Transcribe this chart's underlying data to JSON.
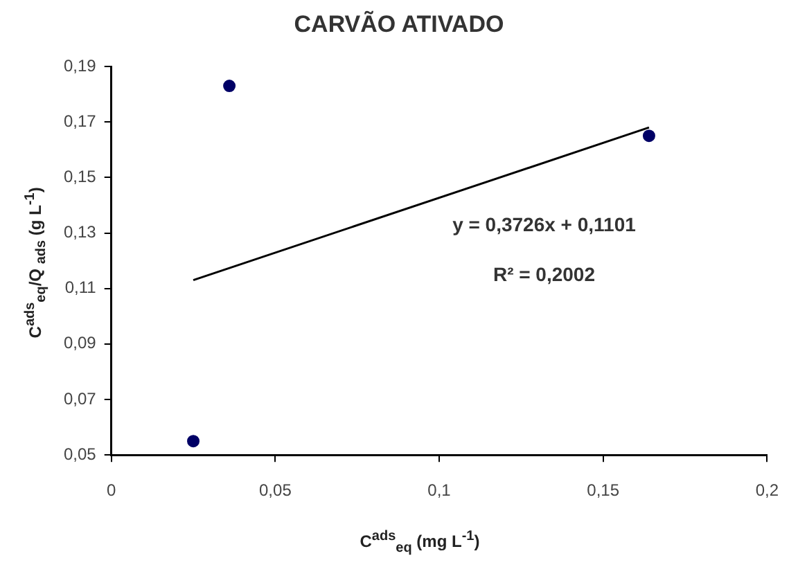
{
  "chart_data": {
    "type": "scatter",
    "title": "CARVÃO ATIVADO",
    "xlabel": "C$^{ads}$$_{eq}$ (mg L$^{-1}$)",
    "ylabel": "C$^{ads}$$_{eq}$/Q $_{ads}$ (g L$^{-1}$)",
    "x": [
      0.025,
      0.036,
      0.164
    ],
    "series": [
      {
        "color": "#000066",
        "values": [
          0.055,
          0.183,
          0.165
        ],
        "marker": "circle"
      },
      {
        "type": "line",
        "color": "#000000",
        "x": [
          0.025,
          0.164
        ],
        "values": [
          0.113,
          0.168
        ],
        "marker": "none"
      }
    ],
    "annotations": [
      "y = 0,3726x + 0,1101",
      "R² = 0,2002"
    ],
    "xlim": [
      0,
      0.2
    ],
    "xticks": [
      0,
      {
        "value": 0.05,
        "label": "0,05"
      },
      {
        "value": 0.1,
        "label": "0,1"
      },
      {
        "value": 0.15,
        "label": "0,15"
      },
      {
        "value": 0.2,
        "label": "0,2"
      }
    ],
    "ylim": [
      0.05,
      0.19
    ],
    "yticks": [
      {
        "value": 0.05,
        "label": "0,05"
      },
      {
        "value": 0.07,
        "label": "0,07"
      },
      {
        "value": 0.09,
        "label": "0,09"
      },
      {
        "value": 0.11,
        "label": "0,11"
      },
      {
        "value": 0.13,
        "label": "0,13"
      },
      {
        "value": 0.15,
        "label": "0,15"
      },
      {
        "value": 0.17,
        "label": "0,17"
      },
      {
        "value": 0.19,
        "label": "0,19"
      }
    ],
    "grid": false,
    "legend": false
  }
}
